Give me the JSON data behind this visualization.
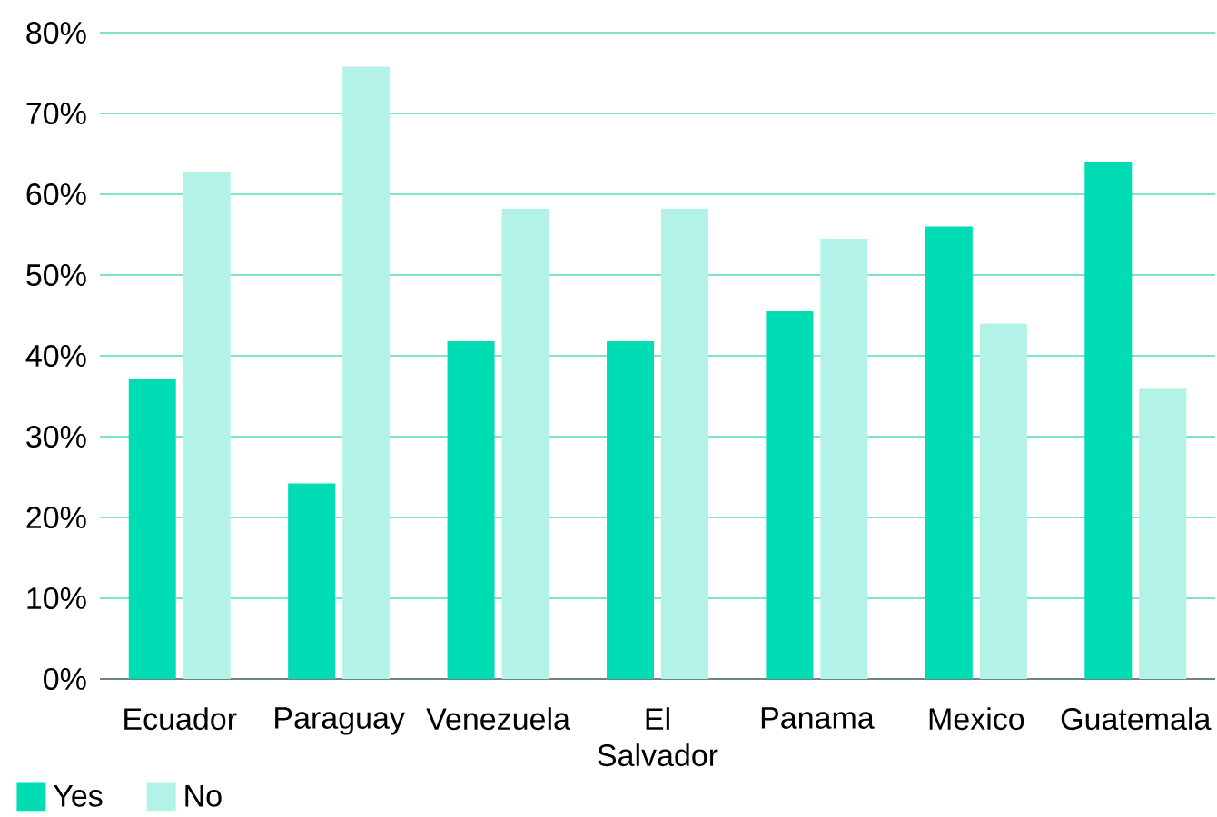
{
  "chart_data": {
    "type": "bar",
    "categories": [
      "Ecuador",
      "Paraguay",
      "Venezuela",
      "El Salvador",
      "Panama",
      "Mexico",
      "Guatemala"
    ],
    "series": [
      {
        "name": "Yes",
        "color": "#00dcb4",
        "values": [
          37.2,
          24.2,
          41.8,
          41.8,
          45.5,
          56,
          64
        ]
      },
      {
        "name": "No",
        "color": "#b3f2e6",
        "values": [
          62.8,
          75.8,
          58.2,
          58.2,
          54.5,
          44,
          36
        ]
      }
    ],
    "ylim": [
      0,
      80
    ],
    "yticks": [
      {
        "value": 0,
        "label": "0%"
      },
      {
        "value": 10,
        "label": "10%"
      },
      {
        "value": 20,
        "label": "20%"
      },
      {
        "value": 30,
        "label": "30%"
      },
      {
        "value": 40,
        "label": "40%"
      },
      {
        "value": 50,
        "label": "50%"
      },
      {
        "value": 60,
        "label": "60%"
      },
      {
        "value": 70,
        "label": "70%"
      },
      {
        "value": 80,
        "label": "80%"
      }
    ],
    "grid": "y",
    "legend": "bottom left"
  }
}
